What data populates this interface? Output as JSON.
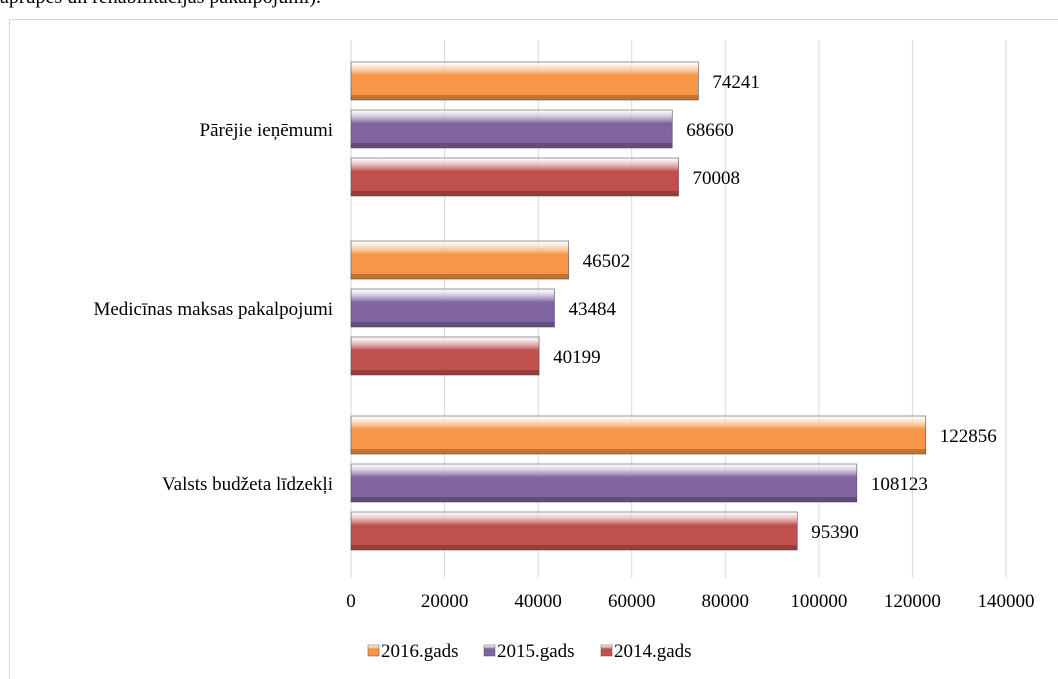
{
  "header": {
    "text": "aprūpes un rehabilitācijas pakalpojumi)."
  },
  "chart_data": {
    "type": "bar",
    "orientation": "horizontal",
    "categories": [
      "Valsts budžeta līdzekļi",
      "Medicīnas maksas pakalpojumi",
      "Pārējie ieņēmumi"
    ],
    "series": [
      {
        "name": "2014.gads",
        "values": [
          95390,
          40199,
          70008
        ],
        "color": "#c0504d"
      },
      {
        "name": "2015.gads",
        "values": [
          108123,
          43484,
          68660
        ],
        "color": "#8064a2"
      },
      {
        "name": "2016.gads",
        "values": [
          122856,
          46502,
          74241
        ],
        "color": "#f79646"
      }
    ],
    "xlim": [
      0,
      140000
    ],
    "xticks": [
      0,
      20000,
      40000,
      60000,
      80000,
      100000,
      120000,
      140000
    ],
    "legend": {
      "placement": "bottom",
      "order": [
        "2016.gads",
        "2015.gads",
        "2014.gads"
      ]
    },
    "grid": true
  }
}
